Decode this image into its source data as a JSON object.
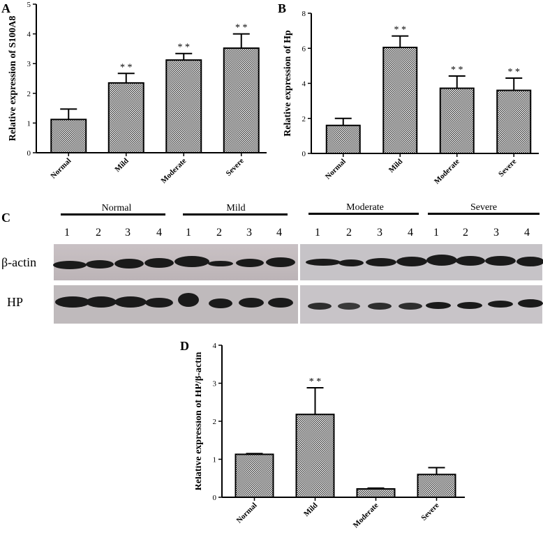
{
  "panel_letters": {
    "a": "A",
    "b": "B",
    "c": "C",
    "d": "D"
  },
  "chart_data": [
    {
      "id": "A",
      "type": "bar",
      "categories": [
        "Normal",
        "Mild",
        "Moderate",
        "Severe"
      ],
      "values": [
        1.12,
        2.35,
        3.12,
        3.52
      ],
      "errors": [
        0.35,
        0.32,
        0.22,
        0.48
      ],
      "annotations": [
        "",
        "* *",
        "* *",
        "* *"
      ],
      "ylabel": "Relative  expression of S100A8",
      "ylim": [
        0,
        5
      ],
      "yticks": [
        0,
        1,
        2,
        3,
        4,
        5
      ],
      "grid": false,
      "legend": "none"
    },
    {
      "id": "B",
      "type": "bar",
      "categories": [
        "Normal",
        "Mild",
        "Moderate",
        "Severe"
      ],
      "values": [
        1.6,
        6.05,
        3.72,
        3.6
      ],
      "errors": [
        0.4,
        0.65,
        0.7,
        0.7
      ],
      "annotations": [
        "",
        "* *",
        "* *",
        "* *"
      ],
      "ylabel": "Relative  expression of  Hp",
      "ylim": [
        0,
        8
      ],
      "yticks": [
        0,
        2,
        4,
        6,
        8
      ],
      "grid": false,
      "legend": "none"
    },
    {
      "id": "D",
      "type": "bar",
      "categories": [
        "Normal",
        "Mild",
        "Moderate",
        "Severe"
      ],
      "values": [
        1.13,
        2.18,
        0.22,
        0.6
      ],
      "errors": [
        0.02,
        0.7,
        0.02,
        0.18
      ],
      "annotations": [
        "",
        "* *",
        "",
        ""
      ],
      "ylabel": "Relative expression of HP/β-actin",
      "ylim": [
        0,
        4
      ],
      "yticks": [
        0,
        1,
        2,
        3,
        4
      ],
      "grid": false,
      "legend": "none"
    }
  ],
  "blot": {
    "groups": [
      "Normal",
      "Mild",
      "Moderate",
      "Severe"
    ],
    "lanes": [
      "1",
      "2",
      "3",
      "4"
    ],
    "rows": [
      "β-actin",
      "HP"
    ]
  }
}
